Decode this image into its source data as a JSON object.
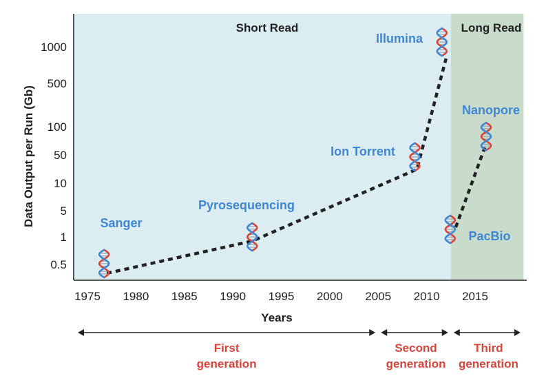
{
  "chart_data": {
    "type": "line",
    "title": "",
    "xlabel": "Years",
    "ylabel": "Data Output per Run (Gb)",
    "xlim": [
      1973,
      2020
    ],
    "x_ticks": [
      "1975",
      "1980",
      "1985",
      "1990",
      "1995",
      "2000",
      "2005",
      "2010",
      "2015"
    ],
    "y_ticks": [
      "0.5",
      "1",
      "5",
      "10",
      "50",
      "100",
      "500",
      "1000"
    ],
    "regions": [
      {
        "name": "Short Read",
        "x_start": 1973,
        "x_end": 2012.5,
        "color": "#dcedf1"
      },
      {
        "name": "Long Read",
        "x_start": 2012.5,
        "x_end": 2020,
        "color": "#c9dccb"
      }
    ],
    "series": [
      {
        "name": "Short-read sequencing",
        "points": [
          {
            "label": "Sanger",
            "x": 1977,
            "y": 0.4
          },
          {
            "label": "Pyrosequencing",
            "x": 1992,
            "y": 0.9
          },
          {
            "label": "Ion Torrent",
            "x": 2009,
            "y": 22
          },
          {
            "label": "Illumina",
            "x": 2012,
            "y": 800
          }
        ]
      },
      {
        "name": "Long-read sequencing",
        "points": [
          {
            "label": "PacBio",
            "x": 2013,
            "y": 1.8
          },
          {
            "label": "Nanopore",
            "x": 2016,
            "y": 60
          }
        ]
      }
    ],
    "generations": [
      {
        "label": "First",
        "label2": "generation",
        "from": 1973,
        "to": 2005
      },
      {
        "label": "Second",
        "label2": "generation",
        "from": 2005,
        "to": 2012.5
      },
      {
        "label": "Third",
        "label2": "generation",
        "from": 2012.5,
        "to": 2020
      }
    ]
  },
  "colors": {
    "tech_label": "#3f86d4",
    "generation_label": "#d9453a",
    "short_read_bg": "#dcedf1",
    "long_read_bg": "#c9dccb",
    "dna_strand_a": "#d9453a",
    "dna_strand_b": "#3f86d4"
  },
  "icons": {
    "dna": "dna-helix-icon"
  }
}
